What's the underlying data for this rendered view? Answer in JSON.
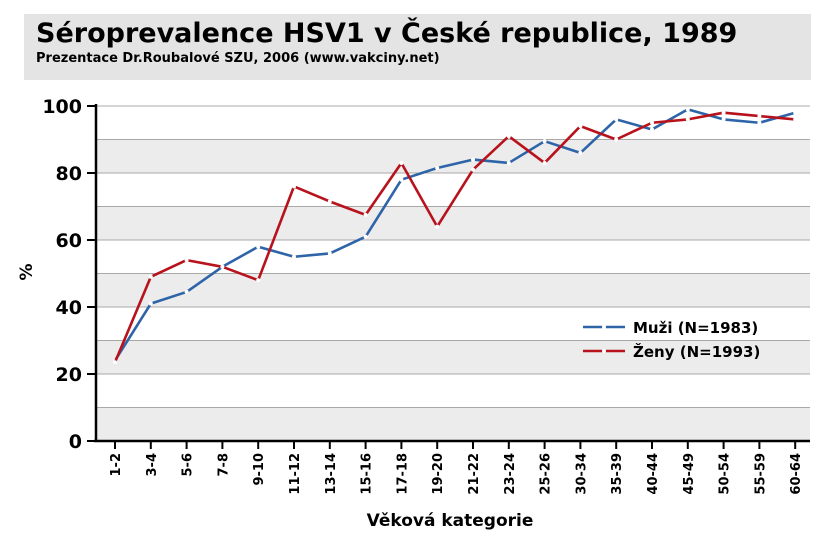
{
  "header": {
    "title": "Séroprevalence HSV1 v České republice, 1989",
    "subtitle": "Prezentace Dr.Roubalové SZU, 2006 (www.vakciny.net)"
  },
  "colors": {
    "muzi": "#2e64a8",
    "zeny": "#b8121c",
    "band": "#ececec",
    "grid": "#a8a8a8"
  },
  "chart_data": {
    "type": "line",
    "title": "Séroprevalence HSV1 v České republice, 1989",
    "subtitle": "Prezentace Dr.Roubalové SZU, 2006 (www.vakciny.net)",
    "xlabel": "Věková kategorie",
    "ylabel": "%",
    "ylim": [
      0,
      100
    ],
    "yticks": [
      0,
      20,
      40,
      60,
      80,
      100
    ],
    "grid": true,
    "legend_position": "right",
    "categories": [
      "1-2",
      "3-4",
      "5-6",
      "7-8",
      "9-10",
      "11-12",
      "13-14",
      "15-16",
      "17-18",
      "19-20",
      "21-22",
      "23-24",
      "25-26",
      "30-34",
      "35-39",
      "40-44",
      "45-49",
      "50-54",
      "55-59",
      "60-64"
    ],
    "series": [
      {
        "name": "Muži (N=1983)",
        "color": "#2e64a8",
        "values": [
          24,
          41,
          44.5,
          52,
          58,
          55,
          56,
          61,
          78,
          81.5,
          84,
          83,
          89.5,
          86,
          96,
          93,
          99,
          96,
          95,
          98
        ]
      },
      {
        "name": "Ženy (N=1993)",
        "color": "#b8121c",
        "values": [
          23.5,
          49,
          54,
          52,
          48,
          76,
          71.5,
          67.5,
          83,
          64,
          81,
          91,
          83,
          94,
          90,
          95,
          96,
          98,
          97,
          96
        ]
      }
    ]
  }
}
